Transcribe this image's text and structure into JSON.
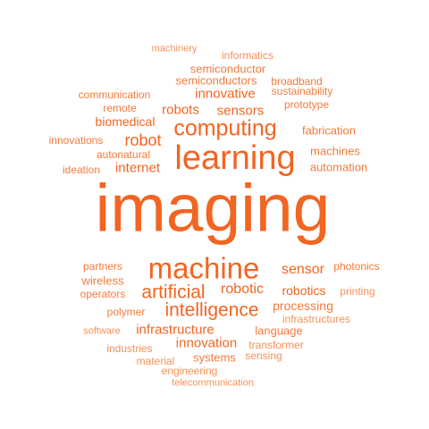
{
  "palette": {
    "strong": "#f26522",
    "medium": "#f47a3c",
    "light": "#f69058"
  },
  "words": [
    "imaging",
    "learning",
    "machine",
    "computing",
    "intelligence",
    "artificial",
    "robot",
    "internet",
    "robotic",
    "sensor",
    "robotics",
    "infrastructure",
    "innovation",
    "innovative",
    "robots",
    "sensors",
    "biomedical",
    "processing",
    "language",
    "automation",
    "machines",
    "fabrication",
    "semiconductor",
    "semiconductors",
    "broadband",
    "sustainability",
    "communication",
    "prototype",
    "remote",
    "innovations",
    "autonatural",
    "ideation",
    "informatics",
    "machinery",
    "partners",
    "wireless",
    "operators",
    "photonics",
    "polymer",
    "printing",
    "infrastructures",
    "software",
    "transformer",
    "industries",
    "systems",
    "sensing",
    "material",
    "engineering",
    "telecommunication"
  ]
}
